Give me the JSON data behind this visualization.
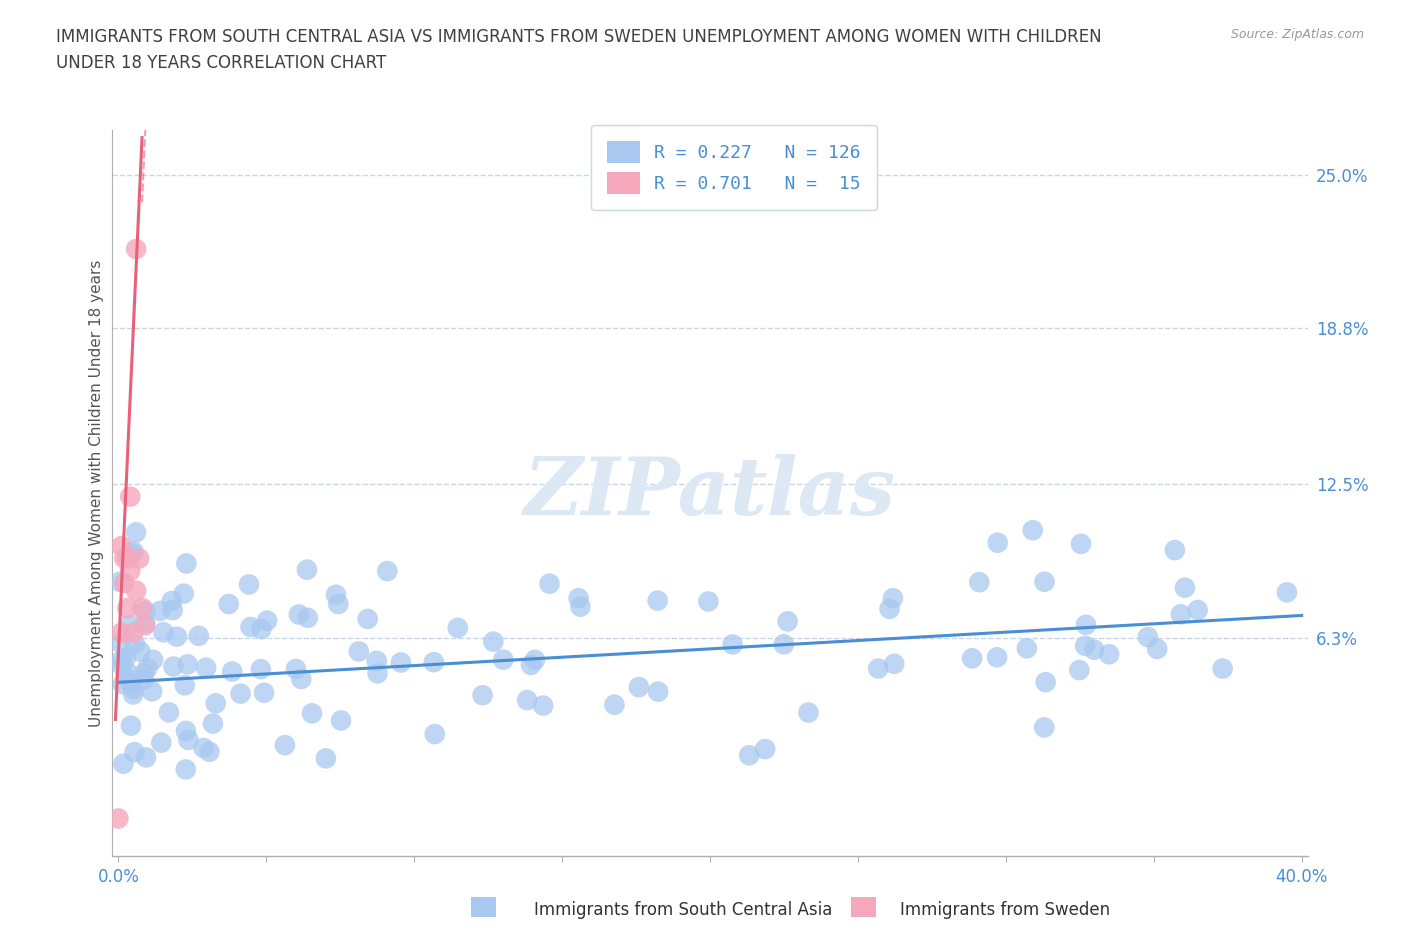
{
  "title": "IMMIGRANTS FROM SOUTH CENTRAL ASIA VS IMMIGRANTS FROM SWEDEN UNEMPLOYMENT AMONG WOMEN WITH CHILDREN\nUNDER 18 YEARS CORRELATION CHART",
  "source": "Source: ZipAtlas.com",
  "ylabel": "Unemployment Among Women with Children Under 18 years",
  "xlim": [
    -0.002,
    0.402
  ],
  "ylim": [
    -0.025,
    0.268
  ],
  "ytick_vals": [
    0.063,
    0.125,
    0.188,
    0.25
  ],
  "ytick_labels": [
    "6.3%",
    "12.5%",
    "18.8%",
    "25.0%"
  ],
  "xtick_vals": [
    0.0,
    0.05,
    0.1,
    0.15,
    0.2,
    0.25,
    0.3,
    0.35,
    0.4
  ],
  "xtick_labels": [
    "0.0%",
    "",
    "",
    "",
    "",
    "",
    "",
    "",
    "40.0%"
  ],
  "watermark": "ZIPatlas",
  "legend_line1": "R = 0.227   N = 126",
  "legend_line2": "R = 0.701   N =  15",
  "series1_color": "#a8c8f0",
  "series2_color": "#f5a8bc",
  "trendline1_color": "#4a8fd4",
  "trendline2_color": "#e8607a",
  "background_color": "#ffffff",
  "grid_color": "#b8cce4",
  "title_color": "#404040",
  "label_color": "#4a8fd4",
  "axis_color": "#b0b0b0",
  "watermark_color": "#dce8f4",
  "trendline1_x0": 0.0,
  "trendline1_y0": 0.045,
  "trendline1_x1": 0.4,
  "trendline1_y1": 0.072,
  "trendline2_x0": -0.001,
  "trendline2_y0": 0.03,
  "trendline2_x1": 0.008,
  "trendline2_y1": 0.265
}
